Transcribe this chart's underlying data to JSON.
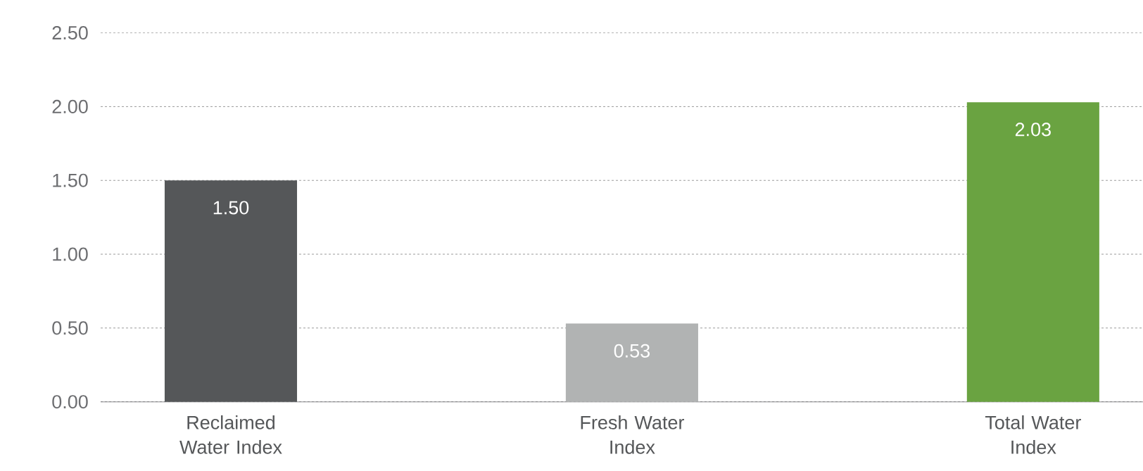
{
  "chart_data": {
    "type": "bar",
    "categories": [
      "Reclaimed Water Index",
      "Fresh Water Index",
      "Total Water Index"
    ],
    "values": [
      1.5,
      0.53,
      2.03
    ],
    "colors": [
      "#555759",
      "#b1b3b3",
      "#6aa341"
    ],
    "value_labels": [
      "1.50",
      "0.53",
      "2.03"
    ],
    "ylim": [
      0,
      2.5
    ],
    "yticks": [
      {
        "value": 0,
        "label": "0.00"
      },
      {
        "value": 0.5,
        "label": "0.50"
      },
      {
        "value": 1,
        "label": "1.00"
      },
      {
        "value": 1.5,
        "label": "1.50"
      },
      {
        "value": 2,
        "label": "2.00"
      },
      {
        "value": 2.5,
        "label": "2.50"
      }
    ],
    "grid": "y"
  }
}
